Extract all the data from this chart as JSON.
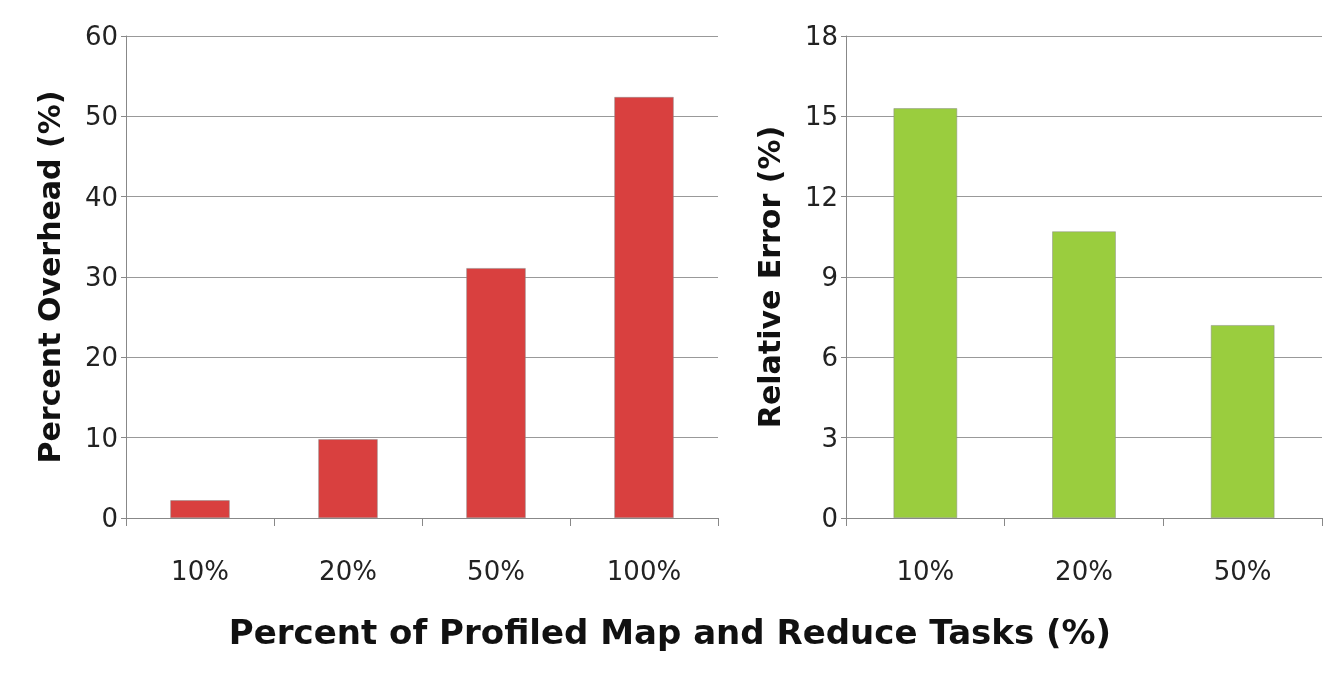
{
  "chart_data": [
    {
      "type": "bar",
      "xlabel": "Percent of Profiled Map and Reduce Tasks (%)",
      "ylabel": "Percent Overhead (%)",
      "categories": [
        "10%",
        "20%",
        "50%",
        "100%"
      ],
      "values": [
        2.2,
        9.8,
        31.1,
        52.4
      ],
      "color": "#d9403f",
      "ylim": [
        0,
        60
      ],
      "yticks": [
        0,
        10,
        20,
        30,
        40,
        50,
        60
      ],
      "grid": "y"
    },
    {
      "type": "bar",
      "ylabel": "Relative Error (%)",
      "categories": [
        "10%",
        "20%",
        "50%"
      ],
      "values": [
        15.3,
        10.7,
        7.2
      ],
      "color": "#9acd3e",
      "ylim": [
        0,
        18
      ],
      "yticks": [
        0,
        3,
        6,
        9,
        12,
        15,
        18
      ],
      "grid": "y"
    }
  ]
}
